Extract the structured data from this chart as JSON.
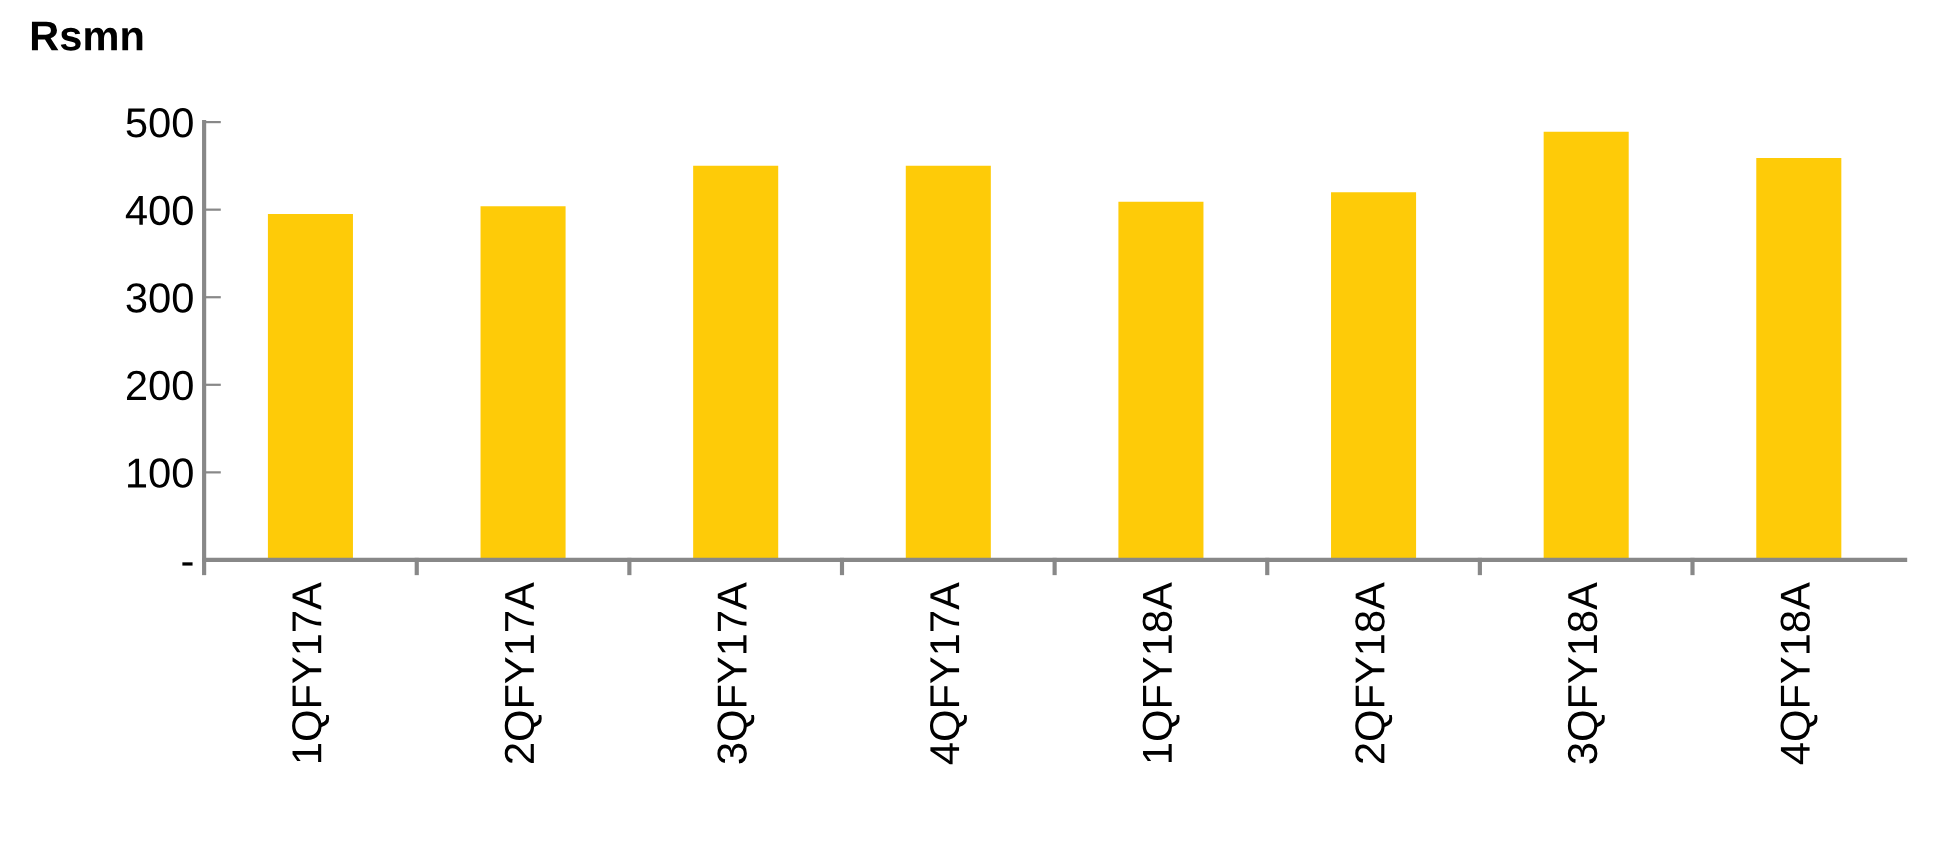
{
  "chart_data": {
    "type": "bar",
    "ylabel": "Rsmn",
    "categories": [
      "1QFY17A",
      "2QFY17A",
      "3QFY17A",
      "4QFY17A",
      "1QFY18A",
      "2QFY18A",
      "3QFY18A",
      "4QFY18A"
    ],
    "values": [
      395,
      404,
      450,
      450,
      409,
      420,
      489,
      459
    ],
    "color": "#fecb08",
    "ylim": [
      0,
      500
    ],
    "yticks": [
      {
        "value": 0,
        "label": "-"
      },
      100,
      200,
      300,
      400,
      500
    ],
    "grid": false
  }
}
